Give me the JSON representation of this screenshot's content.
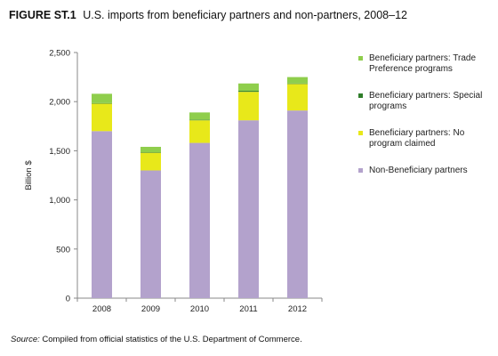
{
  "title": {
    "figure_label": "FIGURE ST.1",
    "text": "U.S. imports from beneficiary partners and non-partners, 2008–12"
  },
  "source": {
    "label": "Source:",
    "text": "Compiled from official statistics of the U.S. Department of Commerce."
  },
  "chart_data": {
    "type": "bar",
    "stacked": true,
    "categories": [
      "2008",
      "2009",
      "2010",
      "2011",
      "2012"
    ],
    "ylabel": "Billion $",
    "xlabel": "",
    "ylim": [
      0,
      2500
    ],
    "yticks": [
      0,
      500,
      1000,
      1500,
      2000,
      2500
    ],
    "ytick_labels": [
      "0",
      "500",
      "1,000",
      "1,500",
      "2,000",
      "2,500"
    ],
    "grid": false,
    "legend_position": "right",
    "series": [
      {
        "name": "Non-Beneficiary partners",
        "color": "#b3a2cc",
        "values": [
          1700,
          1300,
          1580,
          1810,
          1910
        ]
      },
      {
        "name": "Beneficiary partners: No program claimed",
        "color": "#e8e81a",
        "values": [
          280,
          180,
          230,
          290,
          270
        ]
      },
      {
        "name": "Beneficiary partners: Special programs",
        "color": "#2f7d2a",
        "values": [
          5,
          5,
          5,
          10,
          5
        ]
      },
      {
        "name": "Beneficiary partners: Trade Preference programs",
        "color": "#8fce4c",
        "values": [
          95,
          55,
          75,
          75,
          65
        ]
      }
    ],
    "legend_order": [
      3,
      2,
      1,
      0
    ]
  }
}
